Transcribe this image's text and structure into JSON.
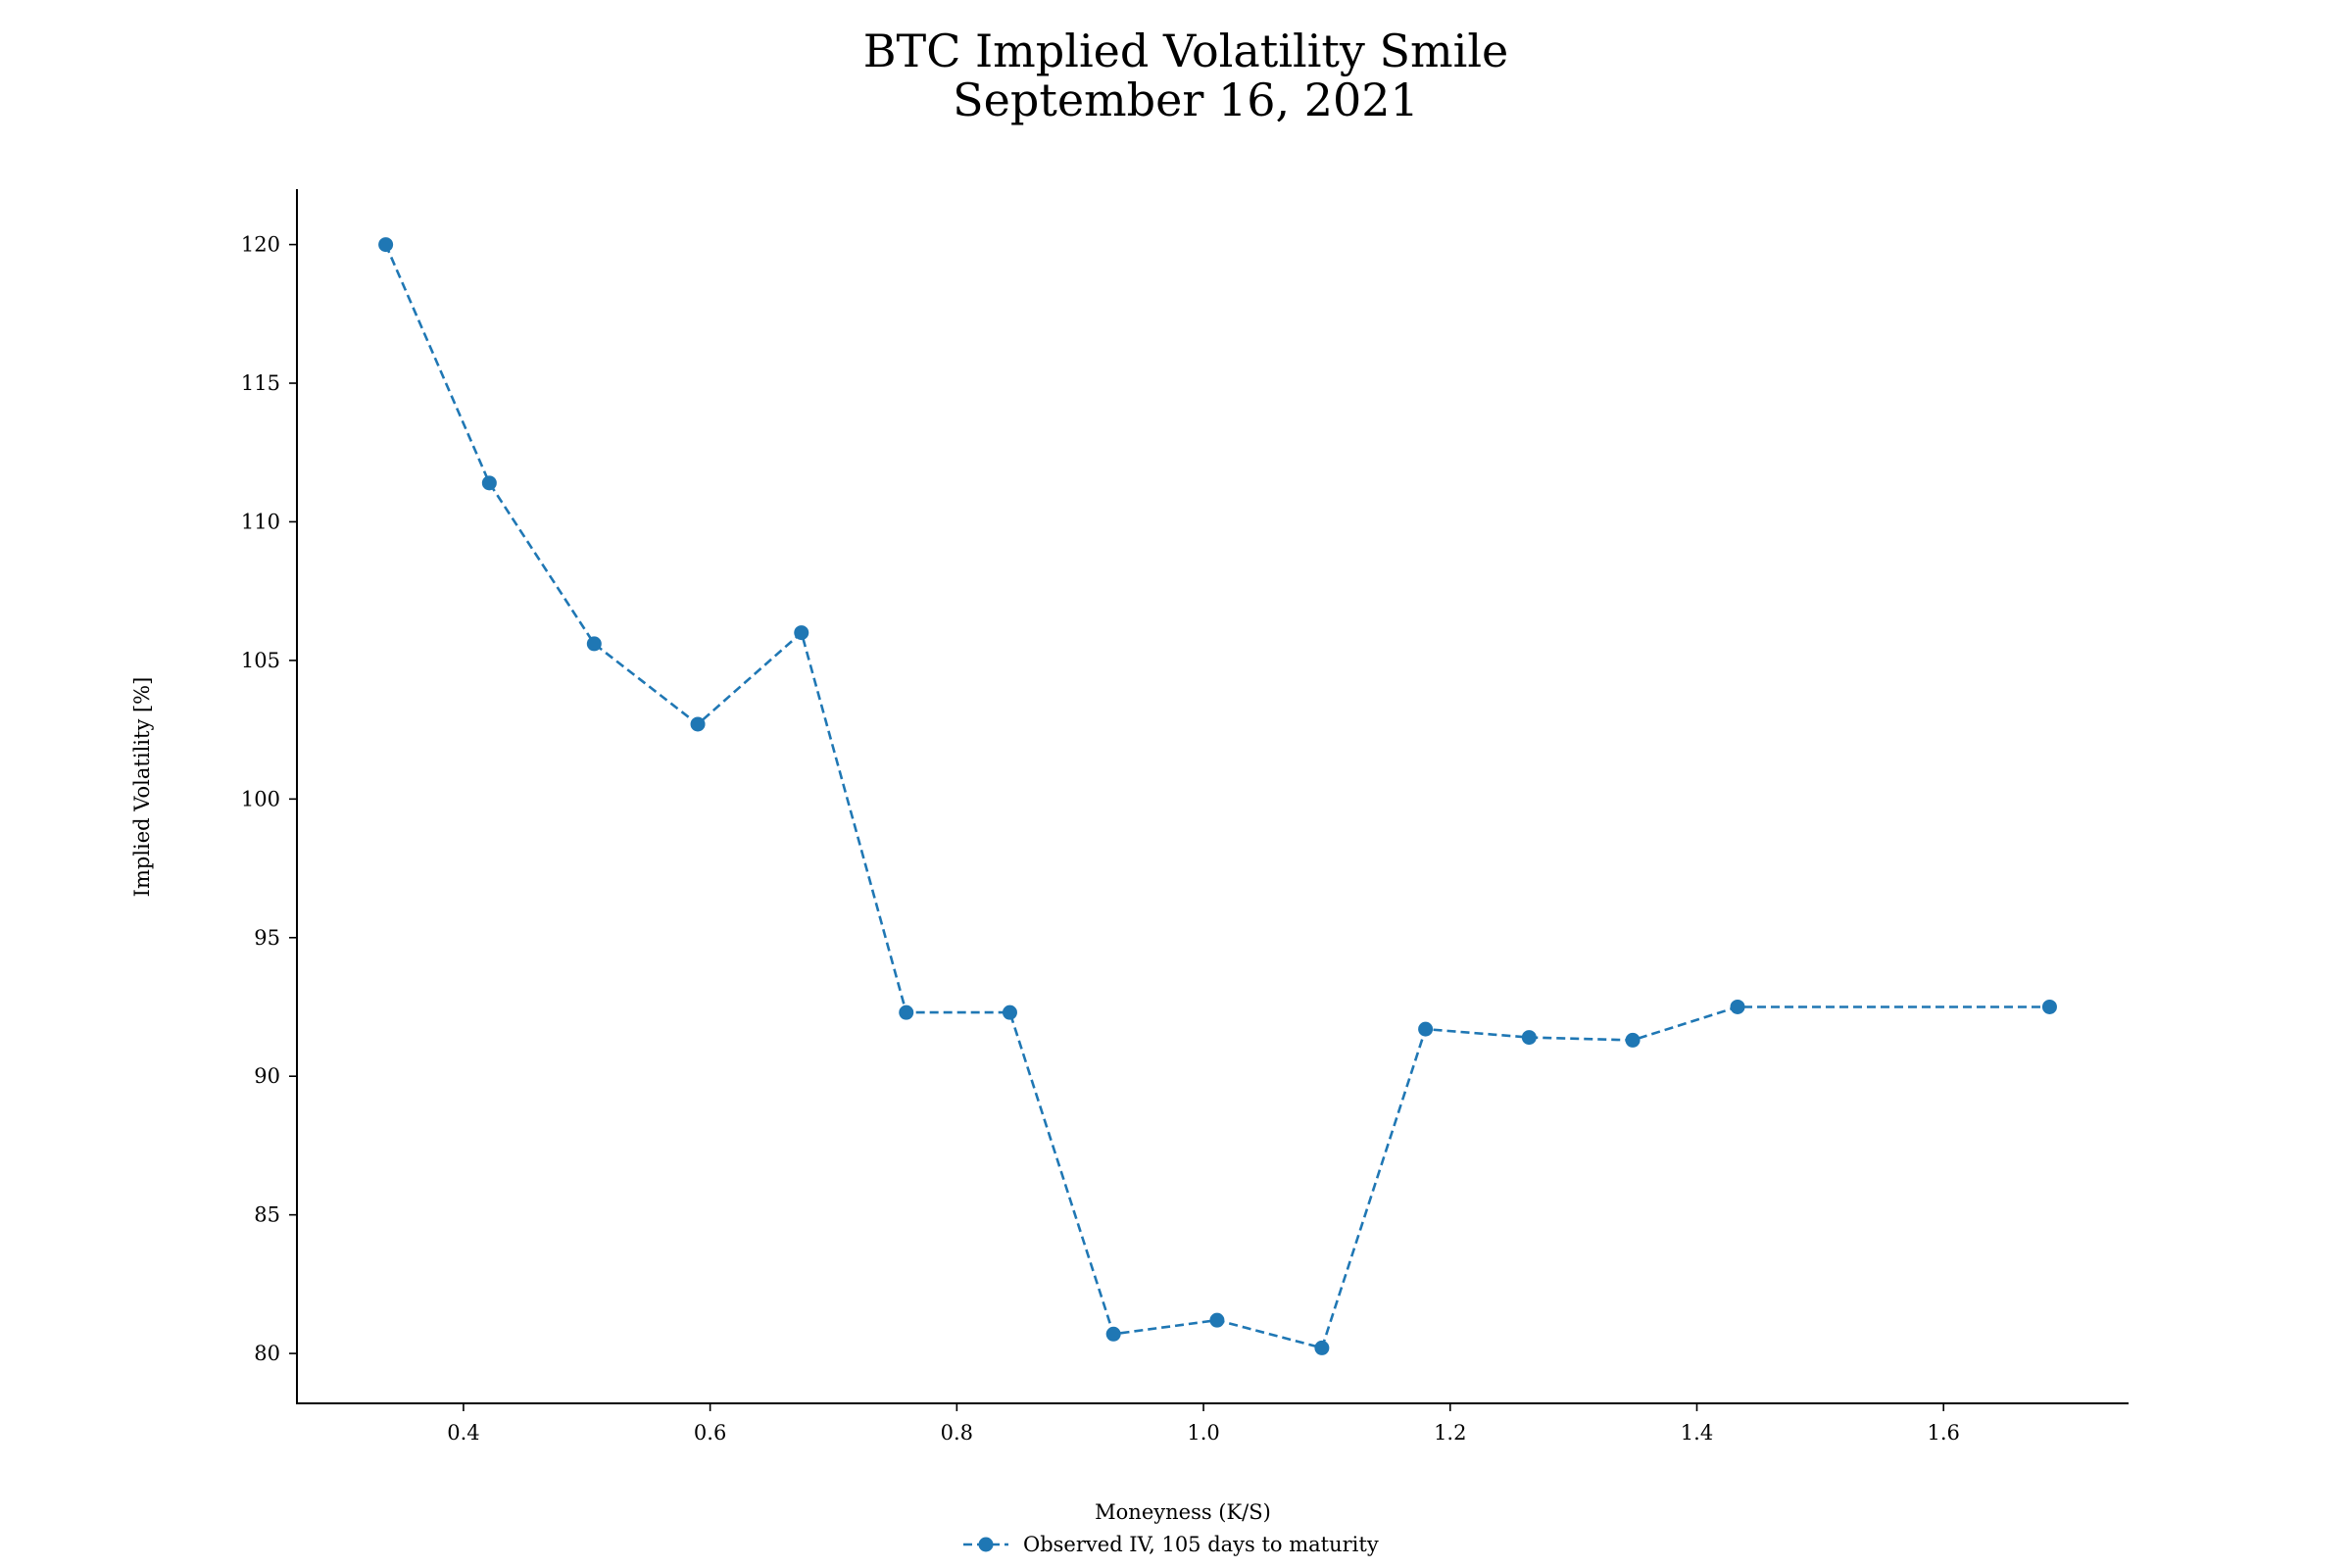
{
  "chart_data": {
    "type": "line",
    "title": "BTC Implied Volatility Smile",
    "subtitle": "September 16, 2021",
    "xlabel": "Moneyness (K/S)",
    "ylabel": "Implied Volatility [%]",
    "xlim": [
      0.265,
      1.75
    ],
    "ylim": [
      78.2,
      122.0
    ],
    "x_ticks": [
      0.4,
      0.6,
      0.8,
      1.0,
      1.2,
      1.4,
      1.6
    ],
    "x_tick_labels": [
      "0.4",
      "0.6",
      "0.8",
      "1.0",
      "1.2",
      "1.4",
      "1.6"
    ],
    "y_ticks": [
      80,
      85,
      90,
      95,
      100,
      105,
      110,
      115,
      120
    ],
    "y_tick_labels": [
      "80",
      "85",
      "90",
      "95",
      "100",
      "105",
      "110",
      "115",
      "120"
    ],
    "grid": false,
    "legend_position": "bottom-center",
    "series": [
      {
        "name": "Observed IV, 105 days to maturity",
        "color": "#1f77b4",
        "line_style": "dashed",
        "marker": "circle",
        "x": [
          0.337,
          0.421,
          0.506,
          0.59,
          0.674,
          0.759,
          0.843,
          0.927,
          1.011,
          1.096,
          1.18,
          1.264,
          1.348,
          1.433,
          1.686
        ],
        "y": [
          120.0,
          111.4,
          105.6,
          102.7,
          106.0,
          92.3,
          92.3,
          80.7,
          81.2,
          80.2,
          91.7,
          91.4,
          91.3,
          92.5,
          92.5
        ]
      }
    ]
  }
}
